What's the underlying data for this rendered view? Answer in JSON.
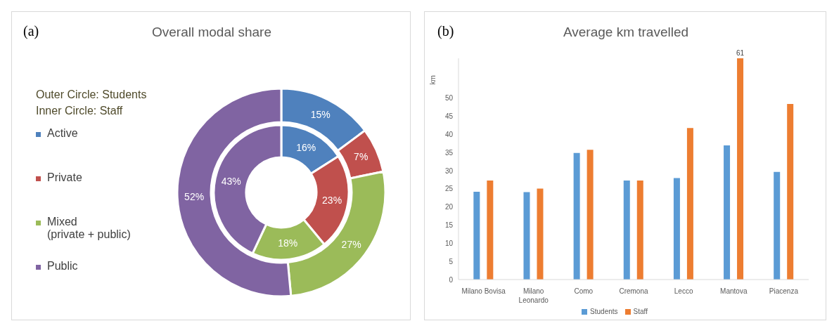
{
  "chart_data": [
    {
      "type": "donut",
      "title": "Overall modal share",
      "annotations": [
        "(a)",
        "Outer Circle: Students",
        "Inner Circle: Staff"
      ],
      "categories": [
        "Active",
        "Private",
        "Mixed\n(private + public)",
        "Public"
      ],
      "colors": [
        "#4f81bd",
        "#c0504d",
        "#9bbb59",
        "#8064a2"
      ],
      "series": [
        {
          "values": [
            15,
            7,
            27,
            52
          ],
          "value_labels": [
            "15%",
            "7%",
            "27%",
            "52%"
          ]
        },
        {
          "values": [
            16,
            23,
            18,
            43
          ],
          "value_labels": [
            "16%",
            "23%",
            "18%",
            "43%"
          ]
        }
      ],
      "legend": "left"
    },
    {
      "type": "bar",
      "title": "Average km travelled",
      "annotations": [
        "(b)"
      ],
      "ylabel": "km",
      "categories": [
        "Milano Bovisa",
        "Milano\nLeonardo",
        "Como",
        "Cremona",
        "Lecco",
        "Mantova",
        "Piacenza"
      ],
      "series": [
        {
          "name": "Students",
          "color": "#5b9bd5",
          "values": [
            24.2,
            24.1,
            34.9,
            27.3,
            28,
            37,
            29.7
          ]
        },
        {
          "name": "Staff",
          "color": "#ed7d31",
          "values": [
            27.3,
            25.1,
            35.8,
            27.3,
            41.8,
            61,
            48.4
          ],
          "value_labels": [
            null,
            null,
            null,
            null,
            null,
            "61",
            null
          ]
        }
      ],
      "ylim": [
        0,
        61
      ],
      "yticks": [
        0,
        5,
        10,
        15,
        20,
        25,
        30,
        35,
        40,
        45,
        50
      ],
      "grid": false,
      "legend": "bottom"
    }
  ]
}
